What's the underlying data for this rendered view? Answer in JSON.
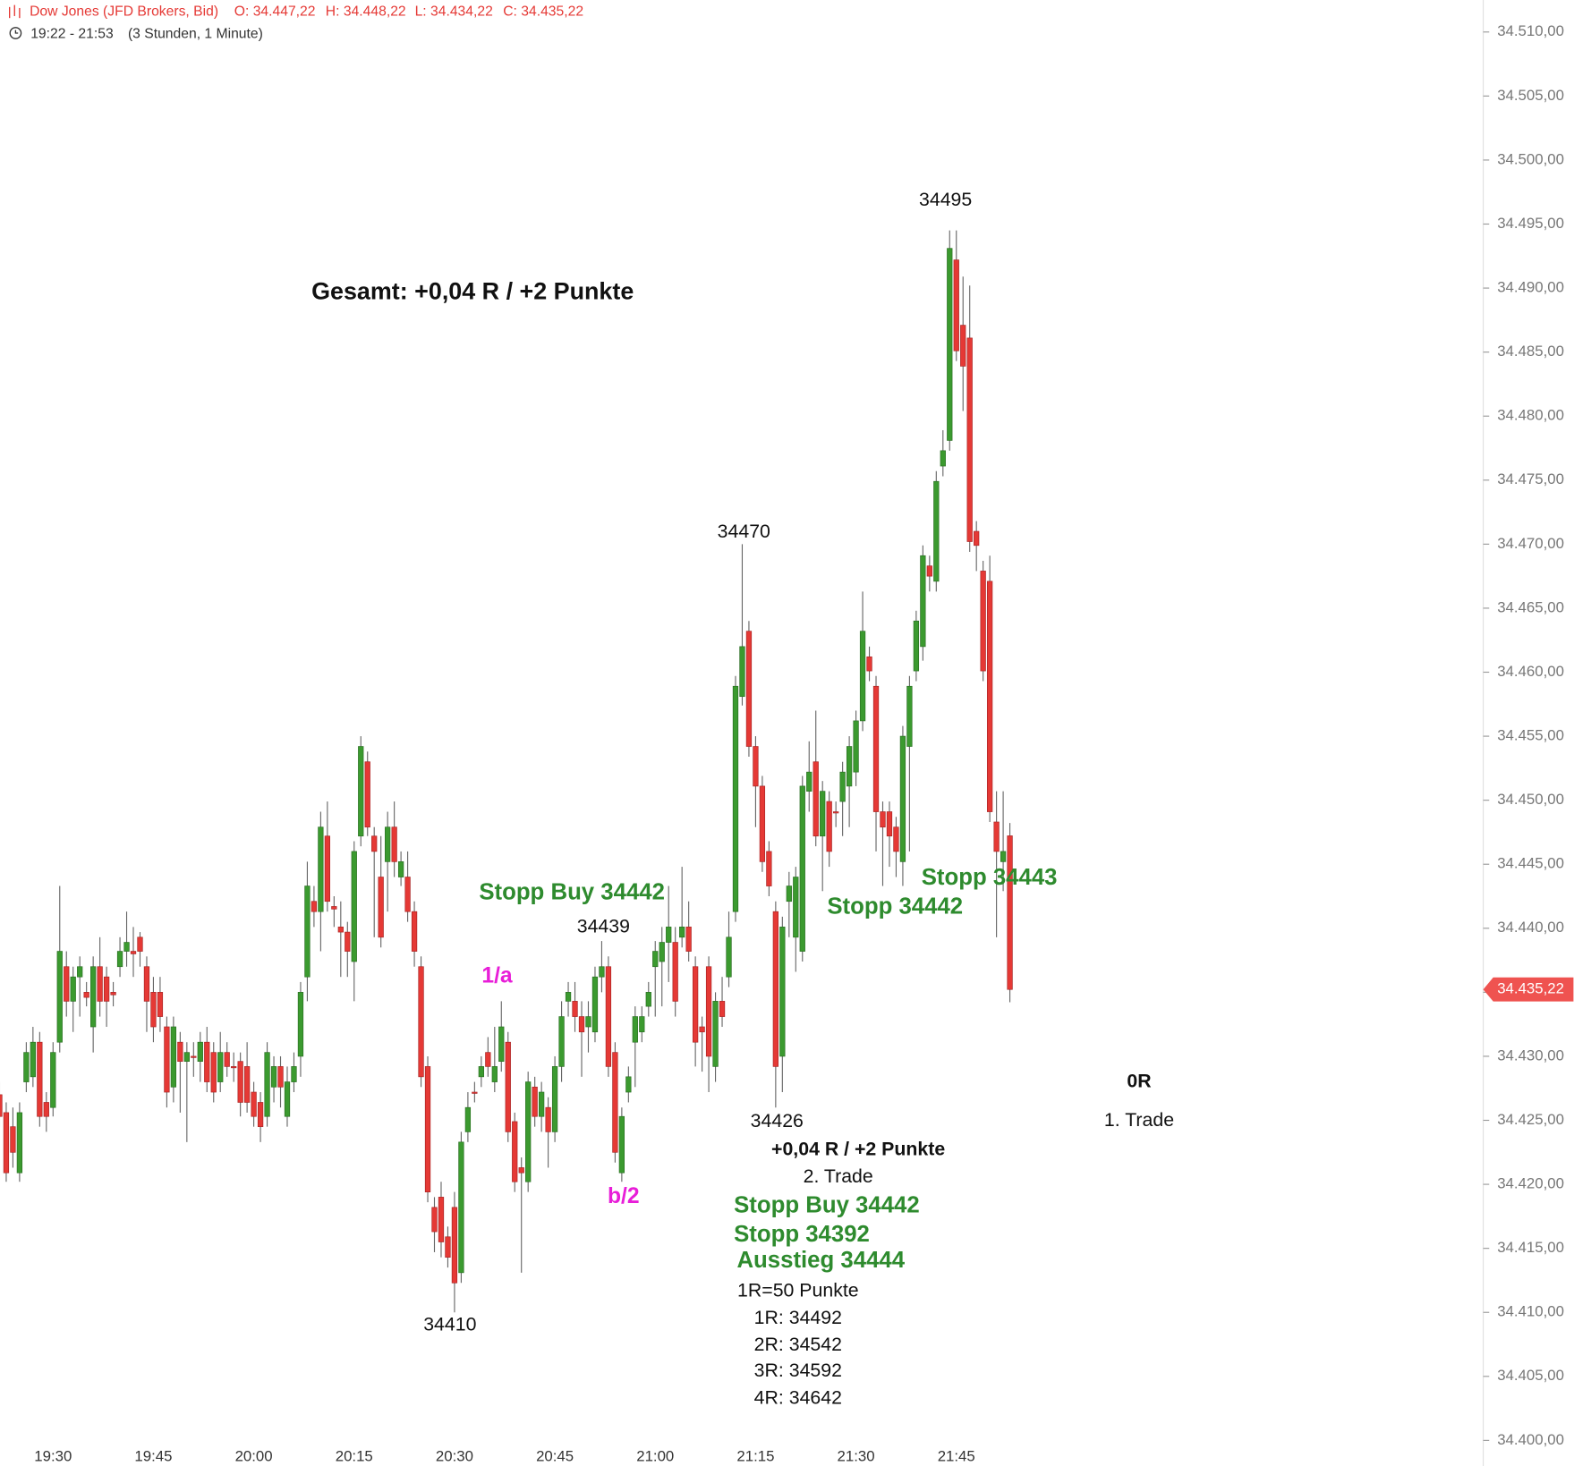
{
  "chart_data": {
    "type": "candlestick",
    "title": "Dow Jones (JFD Brokers, Bid)",
    "ohlc_labels": [
      "O: 34.447,22",
      "H: 34.448,22",
      "L: 34.434,22",
      "C: 34.435,22"
    ],
    "time_range": "19:22 - 21:53",
    "interval": "(3 Stunden, 1 Minute)",
    "up_color": "#3b9a2f",
    "down_color": "#e53935",
    "categories": [
      null,
      null,
      null,
      null,
      null,
      null,
      null,
      null,
      "19:30",
      null,
      null,
      null,
      null,
      null,
      null,
      null,
      null,
      null,
      null,
      null,
      null,
      null,
      null,
      "19:45",
      null,
      null,
      null,
      null,
      null,
      null,
      null,
      null,
      null,
      null,
      null,
      null,
      null,
      null,
      "20:00",
      null,
      null,
      null,
      null,
      null,
      null,
      null,
      null,
      null,
      null,
      null,
      null,
      null,
      null,
      "20:15",
      null,
      null,
      null,
      null,
      null,
      null,
      null,
      null,
      null,
      null,
      null,
      null,
      null,
      null,
      "20:30",
      null,
      null,
      null,
      null,
      null,
      null,
      null,
      null,
      null,
      null,
      null,
      null,
      null,
      null,
      "20:45",
      null,
      null,
      null,
      null,
      null,
      null,
      null,
      null,
      null,
      null,
      null,
      null,
      null,
      null,
      "21:00",
      null,
      null,
      null,
      null,
      null,
      null,
      null,
      null,
      null,
      null,
      null,
      null,
      null,
      null,
      "21:15",
      null,
      null,
      null,
      null,
      null,
      null,
      null,
      null,
      null,
      null,
      null,
      null,
      null,
      null,
      "21:30",
      null,
      null,
      null,
      null,
      null,
      null,
      null,
      null,
      null,
      null,
      null,
      null,
      null,
      null,
      "21:45",
      null,
      null,
      null,
      null,
      null,
      null,
      null,
      null
    ],
    "open": [
      34427.0,
      34425.6,
      34424.5,
      34420.9,
      34428.0,
      34428.4,
      34431.1,
      34426.4,
      34426.0,
      34431.1,
      34437.0,
      34434.3,
      34436.2,
      34435.0,
      34432.3,
      34437.0,
      34436.2,
      34435.0,
      34437.0,
      34438.2,
      34438.2,
      34439.3,
      34437.0,
      34435.0,
      34435.0,
      34432.3,
      34427.6,
      34431.1,
      34429.6,
      34430.0,
      34429.6,
      34431.1,
      34430.3,
      34428.0,
      34430.3,
      34429.2,
      34429.6,
      34429.2,
      34427.2,
      34426.4,
      34425.3,
      34427.6,
      34429.2,
      34425.3,
      34428.0,
      34430.0,
      34436.2,
      34442.1,
      34441.3,
      34447.2,
      34441.7,
      34440.1,
      34439.7,
      34437.4,
      34447.2,
      34453.0,
      34447.2,
      34444.0,
      34445.2,
      34447.9,
      34444.0,
      34444.0,
      34441.3,
      34437.0,
      34429.2,
      34418.2,
      34419.0,
      34415.9,
      34418.2,
      34413.1,
      34424.1,
      34427.2,
      34428.4,
      34430.3,
      34428.0,
      34429.6,
      34431.1,
      34424.9,
      34421.3,
      34420.2,
      34427.6,
      34425.3,
      34426.0,
      34424.1,
      34429.2,
      34434.3,
      34434.3,
      34433.1,
      34432.3,
      34431.9,
      34436.2,
      34437.0,
      34430.3,
      34420.9,
      34427.2,
      34431.1,
      34431.9,
      34433.9,
      34437.0,
      34437.4,
      34438.9,
      34438.9,
      34439.3,
      34440.1,
      34437.0,
      34432.3,
      34437.0,
      34429.2,
      34434.3,
      34436.2,
      34441.3,
      34458.1,
      34463.2,
      34454.2,
      34451.1,
      34446.0,
      34441.3,
      34430.0,
      34442.1,
      34439.3,
      34438.2,
      34450.7,
      34453.0,
      34447.2,
      34449.9,
      34449.1,
      34449.9,
      34451.1,
      34452.2,
      34456.2,
      34461.2,
      34458.9,
      34449.1,
      34449.1,
      34447.9,
      34445.2,
      34454.2,
      34460.1,
      34462.0,
      34468.3,
      34467.1,
      34476.1,
      34478.1,
      34492.2,
      34487.1,
      34486.1,
      34471.0,
      34467.9,
      34467.1,
      34448.3,
      34445.2,
      34447.22
    ],
    "high": [
      34428.0,
      34426.4,
      34426.0,
      34426.4,
      34431.1,
      34432.3,
      34431.9,
      34427.2,
      34431.1,
      34443.3,
      34438.2,
      34437.0,
      34437.8,
      34435.8,
      34437.8,
      34439.3,
      34437.0,
      34435.8,
      34439.3,
      34441.3,
      34440.1,
      34439.7,
      34437.8,
      34436.2,
      34436.2,
      34433.1,
      34433.1,
      34431.9,
      34431.1,
      34431.1,
      34431.9,
      34432.3,
      34431.1,
      34431.9,
      34431.1,
      34430.3,
      34430.3,
      34431.1,
      34428.0,
      34427.2,
      34431.1,
      34430.0,
      34430.0,
      34429.2,
      34430.3,
      34435.8,
      34445.2,
      34443.3,
      34449.1,
      34449.9,
      34442.5,
      34442.1,
      34440.5,
      34446.8,
      34455.0,
      34453.8,
      34447.9,
      34447.2,
      34449.1,
      34449.9,
      34446.0,
      34446.0,
      34442.1,
      34437.8,
      34430.0,
      34419.0,
      34420.2,
      34416.7,
      34419.4,
      34424.1,
      34427.2,
      34428.0,
      34430.0,
      34431.5,
      34432.3,
      34434.3,
      34431.9,
      34425.6,
      34422.1,
      34428.8,
      34428.4,
      34428.0,
      34426.8,
      34430.0,
      34434.3,
      34435.8,
      34435.8,
      34434.3,
      34434.3,
      34437.0,
      34439.0,
      34437.8,
      34431.1,
      34426.0,
      34429.2,
      34433.9,
      34433.9,
      34435.8,
      34439.0,
      34440.1,
      34443.3,
      34440.1,
      34444.8,
      34442.1,
      34437.8,
      34433.1,
      34437.8,
      34435.0,
      34436.2,
      34441.3,
      34459.7,
      34470.0,
      34464.0,
      34455.0,
      34451.9,
      34446.8,
      34442.1,
      34440.9,
      34444.4,
      34444.8,
      34451.9,
      34454.6,
      34457.0,
      34451.5,
      34450.7,
      34449.9,
      34453.0,
      34455.0,
      34457.0,
      34466.3,
      34462.0,
      34459.7,
      34449.9,
      34449.9,
      34448.7,
      34455.8,
      34459.7,
      34464.8,
      34469.9,
      34469.1,
      34475.7,
      34478.9,
      34494.5,
      34494.5,
      34490.9,
      34490.2,
      34471.8,
      34468.7,
      34469.1,
      34450.7,
      34450.7,
      34448.22
    ],
    "low": [
      34424.5,
      34420.2,
      34421.3,
      34420.2,
      34427.2,
      34427.6,
      34424.5,
      34424.1,
      34425.3,
      34430.3,
      34433.1,
      34431.9,
      34433.1,
      34433.9,
      34430.3,
      34433.1,
      34432.3,
      34433.9,
      34436.2,
      34437.0,
      34436.2,
      34437.0,
      34431.9,
      34431.1,
      34431.9,
      34426.0,
      34426.4,
      34425.6,
      34423.3,
      34428.4,
      34428.0,
      34427.2,
      34426.4,
      34427.2,
      34428.4,
      34428.0,
      34425.3,
      34425.6,
      34424.5,
      34423.3,
      34424.5,
      34426.4,
      34426.0,
      34424.5,
      34427.2,
      34428.4,
      34434.3,
      34440.1,
      34438.2,
      34441.3,
      34440.1,
      34436.2,
      34436.2,
      34434.3,
      34446.4,
      34447.2,
      34439.3,
      34438.5,
      34441.3,
      34444.0,
      34443.3,
      34440.5,
      34437.0,
      34427.6,
      34418.6,
      34414.7,
      34414.3,
      34413.5,
      34410.0,
      34412.3,
      34423.3,
      34426.4,
      34427.6,
      34428.4,
      34427.2,
      34428.8,
      34423.3,
      34419.4,
      34413.1,
      34419.4,
      34424.5,
      34424.1,
      34421.3,
      34423.3,
      34428.0,
      34433.1,
      34431.9,
      34428.4,
      34430.3,
      34431.1,
      34435.0,
      34428.4,
      34421.7,
      34420.2,
      34426.4,
      34427.6,
      34431.1,
      34433.1,
      34433.1,
      34433.9,
      34435.8,
      34433.1,
      34438.5,
      34437.4,
      34429.2,
      34428.8,
      34427.2,
      34428.0,
      34432.3,
      34435.4,
      34440.5,
      34457.4,
      34453.4,
      34447.9,
      34444.4,
      34442.5,
      34426.0,
      34427.2,
      34439.3,
      34436.6,
      34437.4,
      34449.1,
      34446.4,
      34442.9,
      34444.8,
      34447.9,
      34447.2,
      34447.9,
      34451.1,
      34455.4,
      34459.3,
      34446.0,
      34443.3,
      34444.8,
      34444.0,
      34443.3,
      34446.0,
      34459.3,
      34460.9,
      34466.3,
      34466.3,
      34475.3,
      34477.3,
      34484.3,
      34480.4,
      34469.4,
      34467.9,
      34459.3,
      34448.3,
      34439.3,
      34442.9,
      34434.22
    ],
    "close": [
      34425.3,
      34420.9,
      34422.5,
      34425.6,
      34430.3,
      34431.1,
      34425.3,
      34425.3,
      34430.3,
      34438.2,
      34434.3,
      34436.2,
      34437.0,
      34434.6,
      34437.0,
      34434.3,
      34434.3,
      34434.8,
      34438.2,
      34438.9,
      34438.0,
      34438.2,
      34434.3,
      34432.3,
      34433.1,
      34427.2,
      34432.3,
      34429.6,
      34430.3,
      34429.9,
      34431.1,
      34428.0,
      34427.2,
      34430.3,
      34429.2,
      34429.1,
      34426.4,
      34426.4,
      34425.3,
      34424.5,
      34430.3,
      34429.2,
      34427.6,
      34428.0,
      34429.2,
      34435.0,
      34443.3,
      34441.3,
      34447.9,
      34442.1,
      34441.5,
      34439.7,
      34438.2,
      34446.0,
      34454.2,
      34447.9,
      34446.0,
      34439.3,
      34447.9,
      34445.2,
      34445.2,
      34441.3,
      34438.2,
      34428.4,
      34419.4,
      34416.3,
      34415.5,
      34414.3,
      34412.3,
      34423.3,
      34426.0,
      34427.1,
      34429.2,
      34429.2,
      34429.2,
      34432.3,
      34424.1,
      34420.2,
      34420.9,
      34428.0,
      34425.3,
      34427.2,
      34424.1,
      34429.2,
      34433.1,
      34435.0,
      34433.1,
      34431.9,
      34433.1,
      34436.2,
      34437.0,
      34429.2,
      34422.5,
      34425.3,
      34428.4,
      34433.1,
      34433.1,
      34435.0,
      34438.2,
      34438.9,
      34440.1,
      34434.3,
      34440.1,
      34438.2,
      34431.1,
      34431.9,
      34430.0,
      34434.3,
      34433.1,
      34439.3,
      34458.9,
      34462.0,
      34454.2,
      34451.1,
      34445.2,
      34443.3,
      34429.2,
      34440.1,
      34443.3,
      34444.0,
      34451.1,
      34452.2,
      34447.2,
      34450.7,
      34446.0,
      34449.0,
      34452.2,
      34454.2,
      34456.2,
      34463.2,
      34460.1,
      34449.1,
      34447.9,
      34447.2,
      34446.0,
      34455.0,
      34458.9,
      34464.0,
      34469.1,
      34467.5,
      34474.9,
      34477.3,
      34493.1,
      34485.1,
      34483.9,
      34470.2,
      34469.9,
      34460.1,
      34449.1,
      34446.0,
      34446.0,
      34435.22
    ],
    "ylim": [
      34398,
      34512.5
    ],
    "yticks": [
      {
        "value": 34400,
        "label": "34.400,00"
      },
      {
        "value": 34405,
        "label": "34.405,00"
      },
      {
        "value": 34410,
        "label": "34.410,00"
      },
      {
        "value": 34415,
        "label": "34.415,00"
      },
      {
        "value": 34420,
        "label": "34.420,00"
      },
      {
        "value": 34425,
        "label": "34.425,00"
      },
      {
        "value": 34430,
        "label": "34.430,00"
      },
      {
        "value": 34435,
        "label": "34.435,00"
      },
      {
        "value": 34440,
        "label": "34.440,00"
      },
      {
        "value": 34445,
        "label": "34.445,00"
      },
      {
        "value": 34450,
        "label": "34.450,00"
      },
      {
        "value": 34455,
        "label": "34.455,00"
      },
      {
        "value": 34460,
        "label": "34.460,00"
      },
      {
        "value": 34465,
        "label": "34.465,00"
      },
      {
        "value": 34470,
        "label": "34.470,00"
      },
      {
        "value": 34475,
        "label": "34.475,00"
      },
      {
        "value": 34480,
        "label": "34.480,00"
      },
      {
        "value": 34485,
        "label": "34.485,00"
      },
      {
        "value": 34490,
        "label": "34.490,00"
      },
      {
        "value": 34495,
        "label": "34.495,00"
      },
      {
        "value": 34500,
        "label": "34.500,00"
      },
      {
        "value": 34505,
        "label": "34.505,00"
      },
      {
        "value": 34510,
        "label": "34.510,00"
      }
    ],
    "last_price": {
      "value": 34435.22,
      "label": "34.435,22"
    },
    "grid": false,
    "annotations": [
      {
        "text": "34495",
        "color": "#111111"
      },
      {
        "text": "Gesamt: +0,04 R / +2 Punkte",
        "color": "#111111"
      },
      {
        "text": "34470",
        "color": "#111111"
      },
      {
        "text": "Stopp Buy 34442",
        "color": "#2e8b2e"
      },
      {
        "text": "34439",
        "color": "#111111"
      },
      {
        "text": "1/a",
        "color": "#e81ed8"
      },
      {
        "text": "Stopp 34443",
        "color": "#2e8b2e"
      },
      {
        "text": "Stopp 34442",
        "color": "#2e8b2e"
      },
      {
        "text": "0R",
        "color": "#111111"
      },
      {
        "text": "1. Trade",
        "color": "#111111"
      },
      {
        "text": "34426",
        "color": "#111111"
      },
      {
        "text": "+0,04 R / +2 Punkte",
        "color": "#111111"
      },
      {
        "text": "2. Trade",
        "color": "#111111"
      },
      {
        "text": "b/2",
        "color": "#e81ed8"
      },
      {
        "text": "Stopp Buy 34442",
        "color": "#2e8b2e"
      },
      {
        "text": "Stopp 34392",
        "color": "#2e8b2e"
      },
      {
        "text": "Ausstieg 34444",
        "color": "#2e8b2e"
      },
      {
        "text": "1R=50 Punkte",
        "color": "#111111"
      },
      {
        "text": "1R: 34492",
        "color": "#111111"
      },
      {
        "text": "2R: 34542",
        "color": "#111111"
      },
      {
        "text": "3R: 34592",
        "color": "#111111"
      },
      {
        "text": "4R: 34642",
        "color": "#111111"
      },
      {
        "text": "34410",
        "color": "#111111"
      }
    ]
  }
}
